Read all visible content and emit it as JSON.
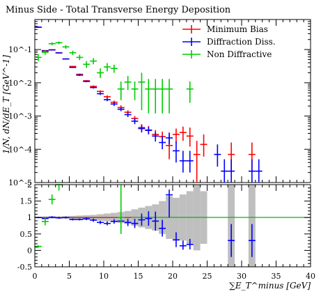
{
  "chart_data": {
    "type": "scatter",
    "title": "Minus Side - Total Transverse Energy Deposition",
    "xlabel": "∑E_T^minus [GeV]",
    "ylabel": "1/N, dN/dE_T [GeV^-1]",
    "xlim": [
      0,
      40
    ],
    "ylim_main": [
      1e-05,
      0.8
    ],
    "y_scale_main": "log",
    "ylim_ratio": [
      -0.5,
      2.0
    ],
    "x_ticks": [
      "0",
      "5",
      "10",
      "15",
      "20",
      "25",
      "30",
      "35",
      "40"
    ],
    "y_ticks_main": [
      "10^-5",
      "10^-4",
      "10^-3",
      "10^-2",
      "10^-1"
    ],
    "y_ticks_ratio": [
      "-0.5",
      "0",
      "0.5",
      "1",
      "1.5",
      "2"
    ],
    "legend": {
      "position": "top-right",
      "entries": [
        {
          "label": "Minimum Bias",
          "color": "#ff0000"
        },
        {
          "label": "Diffraction Diss.",
          "color": "#0000ff"
        },
        {
          "label": "Non Diffractive",
          "color": "#00cc00"
        }
      ]
    },
    "series": [
      {
        "name": "Minimum Bias",
        "color": "#ff0000",
        "points": [
          {
            "x": 0.5,
            "y": 0.47,
            "lo": 0.45,
            "hi": 0.49
          },
          {
            "x": 1.5,
            "y": 0.093,
            "lo": 0.09,
            "hi": 0.096
          },
          {
            "x": 2.5,
            "y": 0.097,
            "lo": 0.094,
            "hi": 0.1
          },
          {
            "x": 3.5,
            "y": 0.08,
            "lo": 0.077,
            "hi": 0.083
          },
          {
            "x": 4.5,
            "y": 0.052,
            "lo": 0.05,
            "hi": 0.054
          },
          {
            "x": 5.5,
            "y": 0.031,
            "lo": 0.03,
            "hi": 0.032
          },
          {
            "x": 6.5,
            "y": 0.018,
            "lo": 0.017,
            "hi": 0.019
          },
          {
            "x": 7.5,
            "y": 0.0115,
            "lo": 0.011,
            "hi": 0.012
          },
          {
            "x": 8.5,
            "y": 0.0078,
            "lo": 0.0073,
            "hi": 0.0083
          },
          {
            "x": 9.5,
            "y": 0.0055,
            "lo": 0.0051,
            "hi": 0.0059
          },
          {
            "x": 10.5,
            "y": 0.0038,
            "lo": 0.0034,
            "hi": 0.0042
          },
          {
            "x": 11.5,
            "y": 0.0026,
            "lo": 0.0023,
            "hi": 0.0029
          },
          {
            "x": 12.5,
            "y": 0.0018,
            "lo": 0.0016,
            "hi": 0.0021
          },
          {
            "x": 13.5,
            "y": 0.0013,
            "lo": 0.0011,
            "hi": 0.0015
          },
          {
            "x": 14.5,
            "y": 0.00085,
            "lo": 0.0007,
            "hi": 0.001
          },
          {
            "x": 15.5,
            "y": 0.00045,
            "lo": 0.00035,
            "hi": 0.00057
          },
          {
            "x": 16.5,
            "y": 0.00038,
            "lo": 0.00029,
            "hi": 0.0005
          },
          {
            "x": 17.5,
            "y": 0.00028,
            "lo": 0.0002,
            "hi": 0.00038
          },
          {
            "x": 18.5,
            "y": 0.00024,
            "lo": 0.00017,
            "hi": 0.00034
          },
          {
            "x": 19.5,
            "y": 0.00013,
            "lo": 5e-05,
            "hi": 0.00028
          },
          {
            "x": 20.5,
            "y": 0.00028,
            "lo": 0.00015,
            "hi": 0.00042
          },
          {
            "x": 21.5,
            "y": 0.00032,
            "lo": 0.00018,
            "hi": 0.00048
          },
          {
            "x": 22.5,
            "y": 0.00025,
            "lo": 0.00012,
            "hi": 0.00045
          },
          {
            "x": 23.5,
            "y": 7e-05,
            "lo": 1e-05,
            "hi": 0.00018
          },
          {
            "x": 24.5,
            "y": 0.00014,
            "lo": 6e-05,
            "hi": 0.00028
          },
          {
            "x": 28.5,
            "y": 7e-05,
            "lo": 2e-05,
            "hi": 0.00016
          },
          {
            "x": 31.5,
            "y": 7e-05,
            "lo": 2e-05,
            "hi": 0.00016
          }
        ]
      },
      {
        "name": "Diffraction Diss.",
        "color": "#0000ff",
        "points": [
          {
            "x": 0.5,
            "y": 0.47,
            "lo": 0.45,
            "hi": 0.49
          },
          {
            "x": 1.5,
            "y": 0.09,
            "lo": 0.087,
            "hi": 0.093
          },
          {
            "x": 2.5,
            "y": 0.098,
            "lo": 0.095,
            "hi": 0.101
          },
          {
            "x": 3.5,
            "y": 0.079,
            "lo": 0.076,
            "hi": 0.082
          },
          {
            "x": 4.5,
            "y": 0.052,
            "lo": 0.05,
            "hi": 0.054
          },
          {
            "x": 5.5,
            "y": 0.029,
            "lo": 0.028,
            "hi": 0.03
          },
          {
            "x": 6.5,
            "y": 0.017,
            "lo": 0.016,
            "hi": 0.018
          },
          {
            "x": 7.5,
            "y": 0.011,
            "lo": 0.0104,
            "hi": 0.0116
          },
          {
            "x": 8.5,
            "y": 0.0072,
            "lo": 0.0067,
            "hi": 0.0077
          },
          {
            "x": 9.5,
            "y": 0.0047,
            "lo": 0.0043,
            "hi": 0.0051
          },
          {
            "x": 10.5,
            "y": 0.0031,
            "lo": 0.0028,
            "hi": 0.0035
          },
          {
            "x": 11.5,
            "y": 0.0023,
            "lo": 0.002,
            "hi": 0.0026
          },
          {
            "x": 12.5,
            "y": 0.0016,
            "lo": 0.0014,
            "hi": 0.0018
          },
          {
            "x": 13.5,
            "y": 0.0011,
            "lo": 0.00093,
            "hi": 0.0013
          },
          {
            "x": 14.5,
            "y": 0.0007,
            "lo": 0.00057,
            "hi": 0.00085
          },
          {
            "x": 15.5,
            "y": 0.00042,
            "lo": 0.00032,
            "hi": 0.00054
          },
          {
            "x": 16.5,
            "y": 0.00037,
            "lo": 0.00028,
            "hi": 0.00048
          },
          {
            "x": 17.5,
            "y": 0.00025,
            "lo": 0.00017,
            "hi": 0.00034
          },
          {
            "x": 18.5,
            "y": 0.00016,
            "lo": 0.0001,
            "hi": 0.00025
          },
          {
            "x": 19.5,
            "y": 0.00022,
            "lo": 0.00014,
            "hi": 0.00032
          },
          {
            "x": 20.5,
            "y": 9e-05,
            "lo": 4e-05,
            "hi": 0.00017
          },
          {
            "x": 21.5,
            "y": 4.5e-05,
            "lo": 2e-05,
            "hi": 9e-05
          },
          {
            "x": 22.5,
            "y": 4.5e-05,
            "lo": 2e-05,
            "hi": 9e-05
          },
          {
            "x": 26.5,
            "y": 7e-05,
            "lo": 3e-05,
            "hi": 0.00014
          },
          {
            "x": 27.5,
            "y": 2.2e-05,
            "lo": 1e-05,
            "hi": 5e-05
          },
          {
            "x": 28.5,
            "y": 2.2e-05,
            "lo": 1e-05,
            "hi": 5e-05
          },
          {
            "x": 31.5,
            "y": 2.2e-05,
            "lo": 1e-05,
            "hi": 5e-05
          },
          {
            "x": 32.5,
            "y": 2.2e-05,
            "lo": 1e-05,
            "hi": 5e-05
          }
        ]
      },
      {
        "name": "Non Diffractive",
        "color": "#00cc00",
        "points": [
          {
            "x": 0.5,
            "y": 0.058,
            "lo": 0.045,
            "hi": 0.072
          },
          {
            "x": 1.5,
            "y": 0.082,
            "lo": 0.07,
            "hi": 0.095
          },
          {
            "x": 2.5,
            "y": 0.15,
            "lo": 0.135,
            "hi": 0.165
          },
          {
            "x": 3.5,
            "y": 0.16,
            "lo": 0.145,
            "hi": 0.175
          },
          {
            "x": 4.5,
            "y": 0.12,
            "lo": 0.105,
            "hi": 0.135
          },
          {
            "x": 5.5,
            "y": 0.08,
            "lo": 0.068,
            "hi": 0.092
          },
          {
            "x": 6.5,
            "y": 0.058,
            "lo": 0.048,
            "hi": 0.07
          },
          {
            "x": 7.5,
            "y": 0.036,
            "lo": 0.028,
            "hi": 0.045
          },
          {
            "x": 8.5,
            "y": 0.045,
            "lo": 0.036,
            "hi": 0.055
          },
          {
            "x": 9.5,
            "y": 0.02,
            "lo": 0.014,
            "hi": 0.027
          },
          {
            "x": 10.5,
            "y": 0.03,
            "lo": 0.022,
            "hi": 0.039
          },
          {
            "x": 11.5,
            "y": 0.027,
            "lo": 0.02,
            "hi": 0.035
          },
          {
            "x": 12.5,
            "y": 0.0065,
            "lo": 0.003,
            "hi": 0.011
          },
          {
            "x": 13.5,
            "y": 0.0105,
            "lo": 0.006,
            "hi": 0.016
          },
          {
            "x": 14.5,
            "y": 0.0065,
            "lo": 0.003,
            "hi": 0.011
          },
          {
            "x": 15.5,
            "y": 0.0105,
            "lo": 0.0015,
            "hi": 0.02
          },
          {
            "x": 16.5,
            "y": 0.0065,
            "lo": 0.0012,
            "hi": 0.013
          },
          {
            "x": 17.5,
            "y": 0.0065,
            "lo": 0.0012,
            "hi": 0.013
          },
          {
            "x": 18.5,
            "y": 0.0065,
            "lo": 0.0012,
            "hi": 0.013
          },
          {
            "x": 19.5,
            "y": 0.0065,
            "lo": 0.0012,
            "hi": 0.013
          },
          {
            "x": 22.5,
            "y": 0.0065,
            "lo": 0.0025,
            "hi": 0.011
          }
        ]
      }
    ],
    "ratio": {
      "reference_line": 1.0,
      "band": [
        {
          "x0": 0,
          "x1": 1,
          "lo": 0.98,
          "hi": 1.02
        },
        {
          "x0": 1,
          "x1": 2,
          "lo": 0.97,
          "hi": 1.03
        },
        {
          "x0": 2,
          "x1": 3,
          "lo": 0.97,
          "hi": 1.03
        },
        {
          "x0": 3,
          "x1": 4,
          "lo": 0.97,
          "hi": 1.03
        },
        {
          "x0": 4,
          "x1": 5,
          "lo": 0.96,
          "hi": 1.04
        },
        {
          "x0": 5,
          "x1": 6,
          "lo": 0.95,
          "hi": 1.05
        },
        {
          "x0": 6,
          "x1": 7,
          "lo": 0.94,
          "hi": 1.06
        },
        {
          "x0": 7,
          "x1": 8,
          "lo": 0.93,
          "hi": 1.07
        },
        {
          "x0": 8,
          "x1": 9,
          "lo": 0.92,
          "hi": 1.08
        },
        {
          "x0": 9,
          "x1": 10,
          "lo": 0.9,
          "hi": 1.1
        },
        {
          "x0": 10,
          "x1": 11,
          "lo": 0.88,
          "hi": 1.12
        },
        {
          "x0": 11,
          "x1": 12,
          "lo": 0.86,
          "hi": 1.14
        },
        {
          "x0": 12,
          "x1": 13,
          "lo": 0.83,
          "hi": 1.17
        },
        {
          "x0": 13,
          "x1": 14,
          "lo": 0.8,
          "hi": 1.2
        },
        {
          "x0": 14,
          "x1": 15,
          "lo": 0.75,
          "hi": 1.25
        },
        {
          "x0": 15,
          "x1": 16,
          "lo": 0.7,
          "hi": 1.3
        },
        {
          "x0": 16,
          "x1": 17,
          "lo": 0.65,
          "hi": 1.35
        },
        {
          "x0": 17,
          "x1": 18,
          "lo": 0.6,
          "hi": 1.4
        },
        {
          "x0": 18,
          "x1": 19,
          "lo": 0.5,
          "hi": 1.5
        },
        {
          "x0": 19,
          "x1": 20,
          "lo": 0.35,
          "hi": 1.65
        },
        {
          "x0": 20,
          "x1": 21,
          "lo": 0.3,
          "hi": 1.6
        },
        {
          "x0": 21,
          "x1": 22,
          "lo": 0.3,
          "hi": 1.7
        },
        {
          "x0": 22,
          "x1": 23,
          "lo": 0.2,
          "hi": 1.8
        },
        {
          "x0": 23,
          "x1": 24,
          "lo": 0.0,
          "hi": 2.0
        },
        {
          "x0": 24,
          "x1": 25,
          "lo": 0.2,
          "hi": 1.8
        },
        {
          "x0": 28,
          "x1": 29,
          "lo": -0.5,
          "hi": 2.0
        },
        {
          "x0": 31,
          "x1": 32,
          "lo": -0.5,
          "hi": 2.0
        }
      ],
      "series": [
        {
          "name": "Diffraction Diss.",
          "color": "#0000ff",
          "points": [
            {
              "x": 0.5,
              "y": 1.0,
              "lo": 0.98,
              "hi": 1.02
            },
            {
              "x": 1.5,
              "y": 0.97,
              "lo": 0.94,
              "hi": 1.0
            },
            {
              "x": 2.5,
              "y": 1.01,
              "lo": 0.98,
              "hi": 1.04
            },
            {
              "x": 3.5,
              "y": 0.99,
              "lo": 0.96,
              "hi": 1.02
            },
            {
              "x": 4.5,
              "y": 1.0,
              "lo": 0.97,
              "hi": 1.03
            },
            {
              "x": 5.5,
              "y": 0.94,
              "lo": 0.91,
              "hi": 0.97
            },
            {
              "x": 6.5,
              "y": 0.94,
              "lo": 0.91,
              "hi": 0.97
            },
            {
              "x": 7.5,
              "y": 0.96,
              "lo": 0.92,
              "hi": 1.0
            },
            {
              "x": 8.5,
              "y": 0.92,
              "lo": 0.87,
              "hi": 0.97
            },
            {
              "x": 9.5,
              "y": 0.85,
              "lo": 0.8,
              "hi": 0.9
            },
            {
              "x": 10.5,
              "y": 0.82,
              "lo": 0.76,
              "hi": 0.88
            },
            {
              "x": 11.5,
              "y": 0.88,
              "lo": 0.81,
              "hi": 0.95
            },
            {
              "x": 12.5,
              "y": 0.89,
              "lo": 0.8,
              "hi": 0.98
            },
            {
              "x": 13.5,
              "y": 0.85,
              "lo": 0.74,
              "hi": 0.96
            },
            {
              "x": 14.5,
              "y": 0.82,
              "lo": 0.68,
              "hi": 0.96
            },
            {
              "x": 15.5,
              "y": 0.93,
              "lo": 0.75,
              "hi": 1.12
            },
            {
              "x": 16.5,
              "y": 0.97,
              "lo": 0.75,
              "hi": 1.19
            },
            {
              "x": 17.5,
              "y": 0.89,
              "lo": 0.6,
              "hi": 1.18
            },
            {
              "x": 18.5,
              "y": 0.67,
              "lo": 0.42,
              "hi": 0.93
            },
            {
              "x": 19.5,
              "y": 1.69,
              "lo": 1.0,
              "hi": 1.85
            },
            {
              "x": 20.5,
              "y": 0.32,
              "lo": 0.1,
              "hi": 0.55
            },
            {
              "x": 21.5,
              "y": 0.14,
              "lo": 0.02,
              "hi": 0.3
            },
            {
              "x": 22.5,
              "y": 0.18,
              "lo": 0.03,
              "hi": 0.35
            },
            {
              "x": 28.5,
              "y": 0.3,
              "lo": -0.2,
              "hi": 0.8
            },
            {
              "x": 31.5,
              "y": 0.3,
              "lo": -0.2,
              "hi": 0.8
            }
          ]
        },
        {
          "name": "Non Diffractive",
          "color": "#00cc00",
          "points": [
            {
              "x": 0.5,
              "y": 0.12,
              "lo": 0.08,
              "hi": 0.16
            },
            {
              "x": 1.5,
              "y": 0.88,
              "lo": 0.76,
              "hi": 1.0
            },
            {
              "x": 2.5,
              "y": 1.55,
              "lo": 1.4,
              "hi": 1.7
            },
            {
              "x": 3.5,
              "y": 2.0,
              "lo": 1.82,
              "hi": 2.18
            },
            {
              "x": 12.5,
              "y": 1.0,
              "lo": 0.5,
              "hi": 2.2
            }
          ]
        }
      ]
    }
  }
}
